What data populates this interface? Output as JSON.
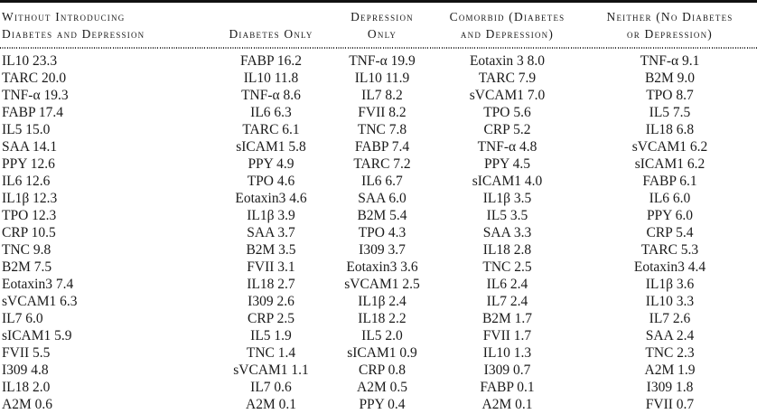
{
  "table": {
    "description": "Biomarker importance ranking table across diabetes/depression groups",
    "columns": [
      {
        "id": "without-introducing",
        "header_lines": [
          "Without Introducing",
          "Diabetes and Depression"
        ],
        "align": "left",
        "cells": [
          {
            "marker": "IL10",
            "value": "23.3"
          },
          {
            "marker": "TARC",
            "value": "20.0"
          },
          {
            "marker": "TNF-α",
            "value": "19.3"
          },
          {
            "marker": "FABP",
            "value": "17.4"
          },
          {
            "marker": "IL5",
            "value": "15.0"
          },
          {
            "marker": "SAA",
            "value": "14.1"
          },
          {
            "marker": "PPY",
            "value": "12.6"
          },
          {
            "marker": "IL6",
            "value": "12.6"
          },
          {
            "marker": "IL1β",
            "value": "12.3"
          },
          {
            "marker": "TPO",
            "value": "12.3"
          },
          {
            "marker": "CRP",
            "value": "10.5"
          },
          {
            "marker": "TNC",
            "value": "9.8"
          },
          {
            "marker": "B2M",
            "value": "7.5"
          },
          {
            "marker": "Eotaxin3",
            "value": "7.4"
          },
          {
            "marker": "sVCAM1",
            "value": "6.3"
          },
          {
            "marker": "IL7",
            "value": "6.0"
          },
          {
            "marker": "sICAM1",
            "value": "5.9"
          },
          {
            "marker": "FVII",
            "value": "5.5"
          },
          {
            "marker": "I309",
            "value": "4.8"
          },
          {
            "marker": "IL18",
            "value": "2.0"
          },
          {
            "marker": "A2M",
            "value": "0.6"
          }
        ]
      },
      {
        "id": "diabetes-only",
        "header_lines": [
          "Diabetes Only"
        ],
        "align": "center",
        "cells": [
          {
            "marker": "FABP",
            "value": "16.2"
          },
          {
            "marker": "IL10",
            "value": "11.8"
          },
          {
            "marker": "TNF-α",
            "value": "8.6"
          },
          {
            "marker": "IL6",
            "value": "6.3"
          },
          {
            "marker": "TARC",
            "value": "6.1"
          },
          {
            "marker": "sICAM1",
            "value": "5.8"
          },
          {
            "marker": "PPY",
            "value": "4.9"
          },
          {
            "marker": "TPO",
            "value": "4.6"
          },
          {
            "marker": "Eotaxin3",
            "value": "4.6"
          },
          {
            "marker": "IL1β",
            "value": "3.9"
          },
          {
            "marker": "SAA",
            "value": "3.7"
          },
          {
            "marker": "B2M",
            "value": "3.5"
          },
          {
            "marker": "FVII",
            "value": "3.1"
          },
          {
            "marker": "IL18",
            "value": "2.7"
          },
          {
            "marker": "I309",
            "value": "2.6"
          },
          {
            "marker": "CRP",
            "value": "2.5"
          },
          {
            "marker": "IL5",
            "value": "1.9"
          },
          {
            "marker": "TNC",
            "value": "1.4"
          },
          {
            "marker": "sVCAM1",
            "value": "1.1"
          },
          {
            "marker": "IL7",
            "value": "0.6"
          },
          {
            "marker": "A2M",
            "value": "0.1"
          }
        ]
      },
      {
        "id": "depression-only",
        "header_lines": [
          "Depression",
          "Only"
        ],
        "align": "center",
        "cells": [
          {
            "marker": "TNF-α",
            "value": "19.9"
          },
          {
            "marker": "IL10",
            "value": "11.9"
          },
          {
            "marker": "IL7",
            "value": "8.2"
          },
          {
            "marker": "FVII",
            "value": "8.2"
          },
          {
            "marker": "TNC",
            "value": "7.8"
          },
          {
            "marker": "FABP",
            "value": "7.4"
          },
          {
            "marker": "TARC",
            "value": "7.2"
          },
          {
            "marker": "IL6",
            "value": "6.7"
          },
          {
            "marker": "SAA",
            "value": "6.0"
          },
          {
            "marker": "B2M",
            "value": "5.4"
          },
          {
            "marker": "TPO",
            "value": "4.3"
          },
          {
            "marker": "I309",
            "value": "3.7"
          },
          {
            "marker": "Eotaxin3",
            "value": "3.6"
          },
          {
            "marker": "sVCAM1",
            "value": "2.5"
          },
          {
            "marker": "IL1β",
            "value": "2.4"
          },
          {
            "marker": "IL18",
            "value": "2.2"
          },
          {
            "marker": "IL5",
            "value": "2.0"
          },
          {
            "marker": "sICAM1",
            "value": "0.9"
          },
          {
            "marker": "CRP",
            "value": "0.8"
          },
          {
            "marker": "A2M",
            "value": "0.5"
          },
          {
            "marker": "PPY",
            "value": "0.4"
          }
        ]
      },
      {
        "id": "comorbid",
        "header_lines": [
          "Comorbid (Diabetes",
          "and Depression)"
        ],
        "align": "center",
        "cells": [
          {
            "marker": "Eotaxin 3",
            "value": "8.0"
          },
          {
            "marker": "TARC",
            "value": "7.9"
          },
          {
            "marker": "sVCAM1",
            "value": "7.0"
          },
          {
            "marker": "TPO",
            "value": "5.6"
          },
          {
            "marker": "CRP",
            "value": "5.2"
          },
          {
            "marker": "TNF-α",
            "value": "4.8"
          },
          {
            "marker": "PPY",
            "value": "4.5"
          },
          {
            "marker": "sICAM1",
            "value": "4.0"
          },
          {
            "marker": "IL1β",
            "value": "3.5"
          },
          {
            "marker": "IL5",
            "value": "3.5"
          },
          {
            "marker": "SAA",
            "value": "3.3"
          },
          {
            "marker": "IL18",
            "value": "2.8"
          },
          {
            "marker": "TNC",
            "value": "2.5"
          },
          {
            "marker": "IL6",
            "value": "2.4"
          },
          {
            "marker": "IL7",
            "value": "2.4"
          },
          {
            "marker": "B2M",
            "value": "1.7"
          },
          {
            "marker": "FVII",
            "value": "1.7"
          },
          {
            "marker": "IL10",
            "value": "1.3"
          },
          {
            "marker": "I309",
            "value": "0.7"
          },
          {
            "marker": "FABP",
            "value": "0.1"
          },
          {
            "marker": "A2M",
            "value": "0.1"
          }
        ]
      },
      {
        "id": "neither",
        "header_lines": [
          "Neither (No Diabetes",
          "or Depression)"
        ],
        "align": "center",
        "cells": [
          {
            "marker": "TNF-α",
            "value": "9.1"
          },
          {
            "marker": "B2M",
            "value": "9.0"
          },
          {
            "marker": "TPO",
            "value": "8.7"
          },
          {
            "marker": "IL5",
            "value": "7.5"
          },
          {
            "marker": "IL18",
            "value": "6.8"
          },
          {
            "marker": "sVCAM1",
            "value": "6.2"
          },
          {
            "marker": "sICAM1",
            "value": "6.2"
          },
          {
            "marker": "FABP",
            "value": "6.1"
          },
          {
            "marker": "IL6",
            "value": "6.0"
          },
          {
            "marker": "PPY",
            "value": "6.0"
          },
          {
            "marker": "CRP",
            "value": "5.4"
          },
          {
            "marker": "TARC",
            "value": "5.3"
          },
          {
            "marker": "Eotaxin3",
            "value": "4.4"
          },
          {
            "marker": "IL1β",
            "value": "3.6"
          },
          {
            "marker": "IL10",
            "value": "3.3"
          },
          {
            "marker": "IL7",
            "value": "2.6"
          },
          {
            "marker": "SAA",
            "value": "2.4"
          },
          {
            "marker": "TNC",
            "value": "2.3"
          },
          {
            "marker": "A2M",
            "value": "1.9"
          },
          {
            "marker": "I309",
            "value": "1.8"
          },
          {
            "marker": "FVII",
            "value": "0.7"
          }
        ]
      }
    ]
  }
}
